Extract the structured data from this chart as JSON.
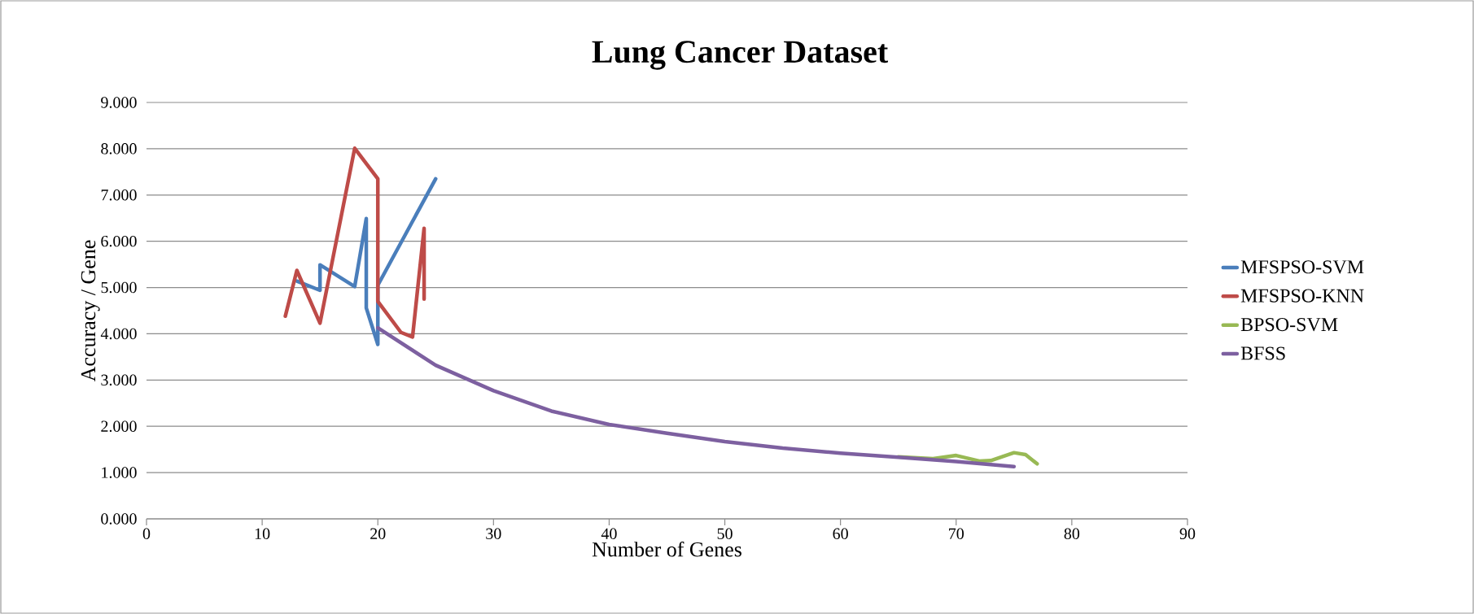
{
  "chart_data": {
    "type": "line",
    "title": "Lung Cancer Dataset",
    "xlabel": "Number of Genes",
    "ylabel": "Accuracy / Gene",
    "series": [
      {
        "name": "MFSPSO-SVM",
        "color": "#4a7ebb",
        "x": [
          13,
          15,
          15,
          18,
          19,
          19,
          20,
          20,
          25
        ],
        "values": [
          5.14,
          4.94,
          5.49,
          5.02,
          6.49,
          4.56,
          3.77,
          5.05,
          7.35
        ]
      },
      {
        "name": "MFSPSO-KNN",
        "color": "#be4b48",
        "x": [
          12,
          13,
          15,
          18,
          20,
          20,
          22,
          23,
          24,
          24
        ],
        "values": [
          4.38,
          5.37,
          4.23,
          8.01,
          7.35,
          4.7,
          4.03,
          3.93,
          6.28,
          4.75
        ]
      },
      {
        "name": "BPSO-SVM",
        "color": "#98b954",
        "x": [
          65,
          68,
          70,
          72,
          73,
          75,
          76,
          77
        ],
        "values": [
          1.34,
          1.3,
          1.37,
          1.25,
          1.26,
          1.43,
          1.39,
          1.19
        ]
      },
      {
        "name": "BFSS",
        "color": "#7d60a0",
        "x": [
          20,
          25,
          30,
          35,
          40,
          45,
          50,
          55,
          60,
          65,
          70,
          75
        ],
        "values": [
          4.13,
          3.32,
          2.77,
          2.33,
          2.04,
          1.85,
          1.67,
          1.53,
          1.42,
          1.33,
          1.24,
          1.13
        ]
      }
    ],
    "xlim": [
      0,
      90
    ],
    "xticks": [
      0,
      10,
      20,
      30,
      40,
      50,
      60,
      70,
      80,
      90
    ],
    "ylim": [
      0,
      9
    ],
    "yticks": [
      {
        "value": 0,
        "label": "0.000"
      },
      {
        "value": 1,
        "label": "1.000"
      },
      {
        "value": 2,
        "label": "2.000"
      },
      {
        "value": 3,
        "label": "3.000"
      },
      {
        "value": 4,
        "label": "4.000"
      },
      {
        "value": 5,
        "label": "5.000"
      },
      {
        "value": 6,
        "label": "6.000"
      },
      {
        "value": 7,
        "label": "7.000"
      },
      {
        "value": 8,
        "label": "8.000"
      },
      {
        "value": 9,
        "label": "9.000"
      }
    ],
    "grid": "y",
    "legend": "right",
    "marker": "none",
    "line_style": "solid"
  }
}
